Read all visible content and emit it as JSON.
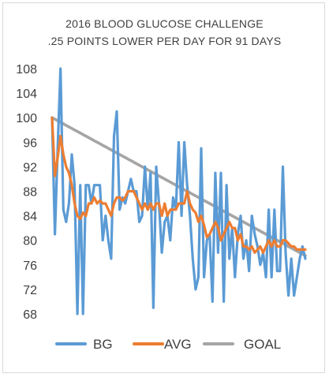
{
  "chart_data": {
    "type": "line",
    "title": "2016 BLOOD GLUCOSE CHALLENGE",
    "subtitle": ".25 POINTS LOWER PER DAY FOR 91 DAYS",
    "xlabel": "",
    "ylabel": "",
    "ylim": [
      67,
      109
    ],
    "yticks": [
      68,
      72,
      76,
      80,
      84,
      88,
      92,
      96,
      100,
      104,
      108
    ],
    "grid": false,
    "legend_position": "bottom",
    "x": [
      1,
      2,
      3,
      4,
      5,
      6,
      7,
      8,
      9,
      10,
      11,
      12,
      13,
      14,
      15,
      16,
      17,
      18,
      19,
      20,
      21,
      22,
      23,
      24,
      25,
      26,
      27,
      28,
      29,
      30,
      31,
      32,
      33,
      34,
      35,
      36,
      37,
      38,
      39,
      40,
      41,
      42,
      43,
      44,
      45,
      46,
      47,
      48,
      49,
      50,
      51,
      52,
      53,
      54,
      55,
      56,
      57,
      58,
      59,
      60,
      61,
      62,
      63,
      64,
      65,
      66,
      67,
      68,
      69,
      70,
      71,
      72,
      73,
      74,
      75,
      76,
      77,
      78,
      79,
      80,
      81,
      82,
      83,
      84,
      85,
      86,
      87,
      88,
      89,
      90,
      91
    ],
    "series": [
      {
        "name": "BG",
        "color": "#5b9bd5",
        "values": [
          100,
          81,
          95,
          108,
          85,
          83,
          86,
          94,
          89,
          68,
          89,
          68,
          89,
          89,
          86,
          89,
          89,
          89,
          80,
          84,
          80,
          77,
          97,
          101,
          85,
          87,
          86,
          88,
          90,
          88,
          88,
          83,
          84,
          92,
          85,
          91,
          69,
          92,
          86,
          78,
          83,
          84,
          80,
          87,
          85,
          96,
          84,
          96,
          89,
          84,
          77,
          72,
          74,
          95,
          74,
          80,
          81,
          70,
          91,
          78,
          91,
          70,
          89,
          77,
          82,
          74,
          81,
          84,
          77,
          80,
          75,
          84,
          81,
          79,
          76,
          78,
          74,
          85,
          74,
          85,
          75,
          75,
          92,
          78,
          71,
          77,
          71,
          74,
          77,
          79,
          77
        ],
        "values_note": "BG series is estimated from the line path"
      },
      {
        "name": "AVG",
        "color": "#ed7d31",
        "values": [
          100,
          90.5,
          93.5,
          97,
          94,
          92,
          91,
          89,
          86,
          84,
          83.5,
          84.5,
          84,
          86,
          86,
          87,
          86,
          86.5,
          86,
          86,
          85,
          84,
          86,
          87,
          87,
          86.5,
          87,
          88,
          88,
          88,
          87,
          86,
          85,
          86,
          85,
          86,
          85,
          86,
          86,
          84,
          86,
          84,
          85,
          85,
          85,
          86,
          86,
          86,
          88,
          86,
          85,
          84.5,
          83,
          84,
          82.5,
          80.5,
          81,
          82,
          83,
          82,
          80,
          81,
          82,
          83,
          82,
          82,
          80,
          81,
          79,
          79,
          78.5,
          79,
          78,
          78.5,
          79,
          78,
          79,
          80,
          79,
          80,
          79,
          79,
          80,
          80,
          79.5,
          79,
          79,
          78.5,
          78.5,
          78.5,
          78.5
        ]
      },
      {
        "name": "GOAL",
        "color": "#a5a5a5",
        "start": 100,
        "step": -0.25
      }
    ]
  }
}
